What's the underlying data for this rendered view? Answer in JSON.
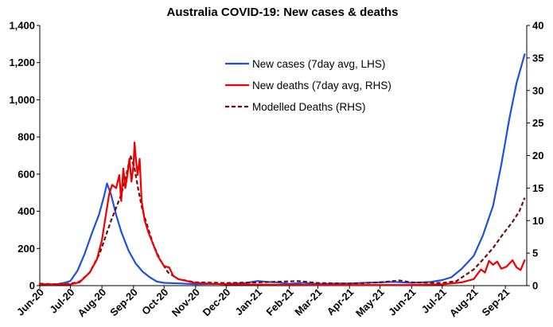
{
  "chart_data": {
    "type": "line",
    "title": "Australia COVID-19: New cases & deaths",
    "xlabel": "",
    "ylabel": "",
    "y_left": {
      "lim": [
        0,
        1400
      ],
      "ticks": [
        0,
        200,
        400,
        600,
        800,
        1000,
        1200,
        1400
      ],
      "tick_labels": [
        "0",
        "200",
        "400",
        "600",
        "800",
        "1,000",
        "1,200",
        "1,400"
      ]
    },
    "y_right": {
      "lim": [
        0,
        40
      ],
      "ticks": [
        0,
        5,
        10,
        15,
        20,
        25,
        30,
        35,
        40
      ],
      "tick_labels": [
        "0",
        "5",
        "10",
        "15",
        "20",
        "25",
        "30",
        "35",
        "40"
      ]
    },
    "x_domain": [
      "2020-06-01",
      "2021-09-22"
    ],
    "x_ticks": [
      "2020-06-01",
      "2020-07-01",
      "2020-08-01",
      "2020-09-01",
      "2020-10-01",
      "2020-11-01",
      "2020-12-01",
      "2021-01-01",
      "2021-02-01",
      "2021-03-01",
      "2021-04-01",
      "2021-05-01",
      "2021-06-01",
      "2021-07-01",
      "2021-08-01",
      "2021-09-01"
    ],
    "x_tick_labels": [
      "Jun-20",
      "Jul-20",
      "Aug-20",
      "Sep-20",
      "Oct-20",
      "Nov-20",
      "Dec-20",
      "Jan-21",
      "Feb-21",
      "Mar-21",
      "Apr-21",
      "May-21",
      "Jun-21",
      "Jul-21",
      "Aug-21",
      "Sep-21"
    ],
    "grid": false,
    "legend_position": "top-right",
    "series": [
      {
        "name": "New cases (7day avg, LHS)",
        "axis": "left",
        "color": "#1f4fe0",
        "style": "solid",
        "points": [
          [
            "2020-06-01",
            8
          ],
          [
            "2020-06-15",
            5
          ],
          [
            "2020-06-25",
            15
          ],
          [
            "2020-07-01",
            25
          ],
          [
            "2020-07-08",
            80
          ],
          [
            "2020-07-15",
            170
          ],
          [
            "2020-07-22",
            280
          ],
          [
            "2020-07-29",
            380
          ],
          [
            "2020-08-03",
            480
          ],
          [
            "2020-08-06",
            550
          ],
          [
            "2020-08-10",
            490
          ],
          [
            "2020-08-15",
            380
          ],
          [
            "2020-08-20",
            290
          ],
          [
            "2020-08-27",
            190
          ],
          [
            "2020-09-03",
            120
          ],
          [
            "2020-09-10",
            75
          ],
          [
            "2020-09-17",
            45
          ],
          [
            "2020-09-24",
            22
          ],
          [
            "2020-10-01",
            15
          ],
          [
            "2020-10-15",
            12
          ],
          [
            "2020-11-01",
            8
          ],
          [
            "2020-12-01",
            10
          ],
          [
            "2020-12-20",
            14
          ],
          [
            "2021-01-01",
            25
          ],
          [
            "2021-01-10",
            20
          ],
          [
            "2021-01-20",
            18
          ],
          [
            "2021-02-01",
            10
          ],
          [
            "2021-02-15",
            15
          ],
          [
            "2021-03-01",
            10
          ],
          [
            "2021-04-01",
            12
          ],
          [
            "2021-05-01",
            18
          ],
          [
            "2021-05-15",
            20
          ],
          [
            "2021-06-01",
            15
          ],
          [
            "2021-06-20",
            20
          ],
          [
            "2021-07-01",
            30
          ],
          [
            "2021-07-10",
            45
          ],
          [
            "2021-07-20",
            90
          ],
          [
            "2021-08-01",
            160
          ],
          [
            "2021-08-10",
            270
          ],
          [
            "2021-08-20",
            430
          ],
          [
            "2021-08-28",
            650
          ],
          [
            "2021-09-05",
            900
          ],
          [
            "2021-09-12",
            1090
          ],
          [
            "2021-09-20",
            1245
          ]
        ]
      },
      {
        "name": "New deaths (7day avg, RHS)",
        "axis": "right",
        "color": "#ee0000",
        "style": "solid",
        "points": [
          [
            "2020-06-01",
            0.2
          ],
          [
            "2020-07-01",
            0.2
          ],
          [
            "2020-07-10",
            0.5
          ],
          [
            "2020-07-20",
            2
          ],
          [
            "2020-07-27",
            4
          ],
          [
            "2020-08-01",
            7
          ],
          [
            "2020-08-05",
            11
          ],
          [
            "2020-08-08",
            14
          ],
          [
            "2020-08-11",
            15.5
          ],
          [
            "2020-08-15",
            15
          ],
          [
            "2020-08-18",
            17
          ],
          [
            "2020-08-20",
            13
          ],
          [
            "2020-08-22",
            18
          ],
          [
            "2020-08-24",
            15
          ],
          [
            "2020-08-26",
            17
          ],
          [
            "2020-08-28",
            19.5
          ],
          [
            "2020-08-30",
            16
          ],
          [
            "2020-09-01",
            18.5
          ],
          [
            "2020-09-02",
            22
          ],
          [
            "2020-09-03",
            20
          ],
          [
            "2020-09-05",
            17
          ],
          [
            "2020-09-07",
            19.5
          ],
          [
            "2020-09-09",
            13
          ],
          [
            "2020-09-12",
            10
          ],
          [
            "2020-09-16",
            8
          ],
          [
            "2020-09-20",
            6.5
          ],
          [
            "2020-09-25",
            4.5
          ],
          [
            "2020-10-01",
            3
          ],
          [
            "2020-10-06",
            2.8
          ],
          [
            "2020-10-10",
            1.5
          ],
          [
            "2020-10-15",
            1
          ],
          [
            "2020-11-01",
            0.4
          ],
          [
            "2020-12-01",
            0.2
          ],
          [
            "2021-03-01",
            0.1
          ],
          [
            "2021-06-01",
            0.1
          ],
          [
            "2021-07-01",
            0.2
          ],
          [
            "2021-07-20",
            0.5
          ],
          [
            "2021-08-01",
            1
          ],
          [
            "2021-08-08",
            2.5
          ],
          [
            "2021-08-12",
            2
          ],
          [
            "2021-08-16",
            3.8
          ],
          [
            "2021-08-20",
            3.2
          ],
          [
            "2021-08-24",
            3.7
          ],
          [
            "2021-08-28",
            2.6
          ],
          [
            "2021-09-02",
            2.9
          ],
          [
            "2021-09-08",
            3.9
          ],
          [
            "2021-09-12",
            2.8
          ],
          [
            "2021-09-16",
            2.4
          ],
          [
            "2021-09-20",
            3.9
          ]
        ]
      },
      {
        "name": "Modelled Deaths (RHS)",
        "axis": "right",
        "color": "#6b0f12",
        "style": "dashed",
        "points": [
          [
            "2020-06-01",
            0.3
          ],
          [
            "2020-06-20",
            0.2
          ],
          [
            "2020-07-01",
            0.3
          ],
          [
            "2020-07-10",
            0.6
          ],
          [
            "2020-07-20",
            2
          ],
          [
            "2020-07-30",
            5
          ],
          [
            "2020-08-10",
            10
          ],
          [
            "2020-08-20",
            14
          ],
          [
            "2020-08-25",
            17
          ],
          [
            "2020-08-29",
            20
          ],
          [
            "2020-09-02",
            18
          ],
          [
            "2020-09-06",
            14.5
          ],
          [
            "2020-09-10",
            11.5
          ],
          [
            "2020-09-15",
            9
          ],
          [
            "2020-09-20",
            6.5
          ],
          [
            "2020-09-27",
            4
          ],
          [
            "2020-10-05",
            2
          ],
          [
            "2020-10-15",
            1
          ],
          [
            "2020-11-01",
            0.5
          ],
          [
            "2020-12-01",
            0.4
          ],
          [
            "2021-01-01",
            0.5
          ],
          [
            "2021-01-20",
            0.6
          ],
          [
            "2021-02-10",
            0.7
          ],
          [
            "2021-03-01",
            0.4
          ],
          [
            "2021-04-01",
            0.3
          ],
          [
            "2021-05-01",
            0.5
          ],
          [
            "2021-05-20",
            0.8
          ],
          [
            "2021-06-01",
            0.5
          ],
          [
            "2021-07-01",
            0.4
          ],
          [
            "2021-07-15",
            0.7
          ],
          [
            "2021-08-01",
            2.5
          ],
          [
            "2021-08-10",
            4
          ],
          [
            "2021-08-20",
            5.8
          ],
          [
            "2021-08-30",
            8
          ],
          [
            "2021-09-08",
            9.8
          ],
          [
            "2021-09-15",
            11.5
          ],
          [
            "2021-09-20",
            13.5
          ]
        ]
      }
    ]
  }
}
